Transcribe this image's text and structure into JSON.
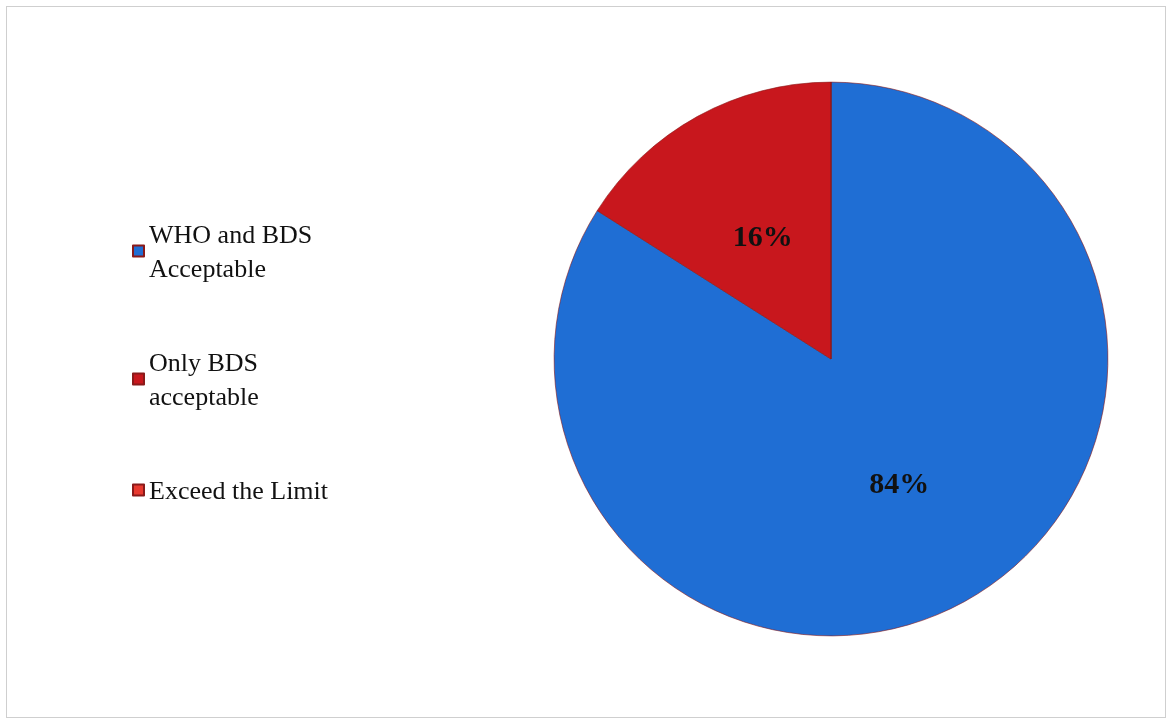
{
  "chart_data": {
    "type": "pie",
    "categories": [
      "WHO and BDS Acceptable",
      "Only BDS  acceptable",
      "Exceed the Limit"
    ],
    "values": [
      84,
      16,
      0
    ],
    "colors": [
      "#1f6ed4",
      "#c8171d",
      "#e8392f"
    ],
    "value_labels": [
      "84%",
      "16%",
      null
    ],
    "legend": "left"
  }
}
